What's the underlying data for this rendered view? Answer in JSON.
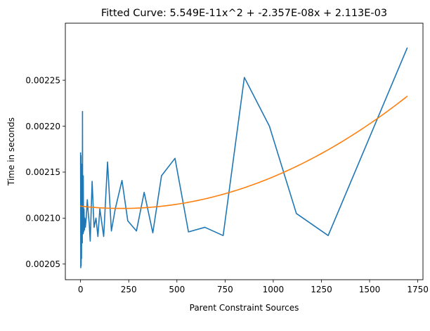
{
  "chart_data": {
    "type": "line",
    "title": "Fitted Curve: 5.549E-11x^2 + -2.357E-08x + 2.113E-03",
    "xlabel": "Parent Constraint Sources",
    "ylabel": "Time in seconds",
    "xlim": [
      -79,
      1777
    ],
    "ylim": [
      0.002033,
      0.002312
    ],
    "x_ticks": [
      0,
      250,
      500,
      750,
      1000,
      1250,
      1500,
      1750
    ],
    "x_tick_labels": [
      "0",
      "250",
      "500",
      "750",
      "1000",
      "1250",
      "1500",
      "1750"
    ],
    "y_ticks": [
      0.00205,
      0.0021,
      0.00215,
      0.0022,
      0.00225
    ],
    "y_tick_labels": [
      "0.00205",
      "0.00210",
      "0.00215",
      "0.00220",
      "0.00225"
    ],
    "grid": false,
    "colors": {
      "measured": "#1f77b4",
      "fitted": "#ff7f0e"
    },
    "series": [
      {
        "x": [
          0,
          1,
          2,
          3,
          4,
          5,
          6,
          7,
          8,
          9,
          10,
          11,
          12,
          13,
          14,
          15,
          16,
          18,
          20,
          22,
          25,
          30,
          35,
          40,
          45,
          50,
          60,
          70,
          80,
          90,
          100,
          120,
          140,
          160,
          180,
          215,
          245,
          290,
          330,
          375,
          420,
          490,
          560,
          645,
          740,
          850,
          980,
          1120,
          1285,
          1695
        ],
        "y": [
          0.002171,
          0.002046,
          0.002168,
          0.002048,
          0.002154,
          0.002056,
          0.002141,
          0.002075,
          0.002159,
          0.002073,
          0.002216,
          0.002095,
          0.002145,
          0.002083,
          0.002146,
          0.0021,
          0.002085,
          0.00211,
          0.002087,
          0.0021,
          0.00209,
          0.002102,
          0.00212,
          0.002105,
          0.002094,
          0.002075,
          0.00214,
          0.00209,
          0.0021,
          0.00208,
          0.00211,
          0.00208,
          0.002161,
          0.002086,
          0.00211,
          0.002141,
          0.002097,
          0.002086,
          0.002128,
          0.002084,
          0.002146,
          0.002165,
          0.002085,
          0.00209,
          0.002081,
          0.002253,
          0.0022,
          0.002105,
          0.002081,
          0.002285
        ]
      },
      {
        "fit_coefficients": [
          5.549e-11,
          -2.357e-08,
          0.002113
        ],
        "x_range": [
          0,
          1695
        ]
      }
    ]
  }
}
